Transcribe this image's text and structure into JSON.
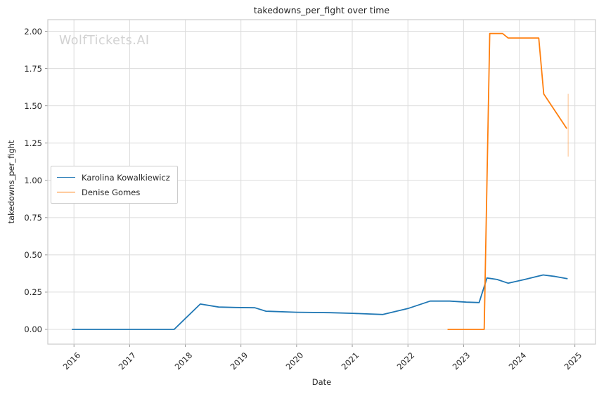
{
  "chart_data": {
    "type": "line",
    "title": "takedowns_per_fight over time",
    "xlabel": "Date",
    "ylabel": "takedowns_per_fight",
    "watermark": "WolfTickets.AI",
    "grid": true,
    "legend_position": "center-left",
    "xlim": [
      2015.53,
      2025.37
    ],
    "ylim": [
      -0.099,
      2.078
    ],
    "x_ticks": [
      "2016",
      "2017",
      "2018",
      "2019",
      "2020",
      "2021",
      "2022",
      "2023",
      "2024",
      "2025"
    ],
    "y_ticks": [
      "0.00",
      "0.25",
      "0.50",
      "0.75",
      "1.00",
      "1.25",
      "1.50",
      "1.75",
      "2.00"
    ],
    "colors": {
      "grid": "#dcdcdc",
      "spine": "#cccccc",
      "tick": "#8c8c8c",
      "text": "#262626",
      "watermark": "#d2d2d2"
    },
    "series": [
      {
        "name": "Karolina Kowalkiewicz",
        "color": "#1f77b4",
        "points": [
          [
            2015.97,
            0.0
          ],
          [
            2016.45,
            0.0
          ],
          [
            2016.95,
            0.0
          ],
          [
            2017.4,
            0.0
          ],
          [
            2017.8,
            0.0
          ],
          [
            2018.27,
            0.17
          ],
          [
            2018.6,
            0.15
          ],
          [
            2018.9,
            0.147
          ],
          [
            2019.25,
            0.145
          ],
          [
            2019.45,
            0.122
          ],
          [
            2020.0,
            0.115
          ],
          [
            2020.6,
            0.112
          ],
          [
            2021.0,
            0.108
          ],
          [
            2021.55,
            0.1
          ],
          [
            2022.0,
            0.14
          ],
          [
            2022.4,
            0.19
          ],
          [
            2022.75,
            0.19
          ],
          [
            2023.05,
            0.183
          ],
          [
            2023.28,
            0.18
          ],
          [
            2023.42,
            0.345
          ],
          [
            2023.6,
            0.335
          ],
          [
            2023.8,
            0.31
          ],
          [
            2024.1,
            0.335
          ],
          [
            2024.43,
            0.365
          ],
          [
            2024.65,
            0.355
          ],
          [
            2024.86,
            0.34
          ]
        ]
      },
      {
        "name": "Denise Gomes",
        "color": "#ff7f0e",
        "points": [
          [
            2022.72,
            0.0
          ],
          [
            2023.0,
            0.0
          ],
          [
            2023.37,
            0.0
          ],
          [
            2023.47,
            1.985
          ],
          [
            2023.7,
            1.985
          ],
          [
            2023.8,
            1.955
          ],
          [
            2024.35,
            1.955
          ],
          [
            2024.44,
            1.58
          ],
          [
            2024.85,
            1.35
          ]
        ]
      }
    ],
    "error_bar": {
      "series": "Denise Gomes",
      "x": 2024.88,
      "from": 1.16,
      "to": 1.58,
      "opacity": 0.3
    }
  }
}
